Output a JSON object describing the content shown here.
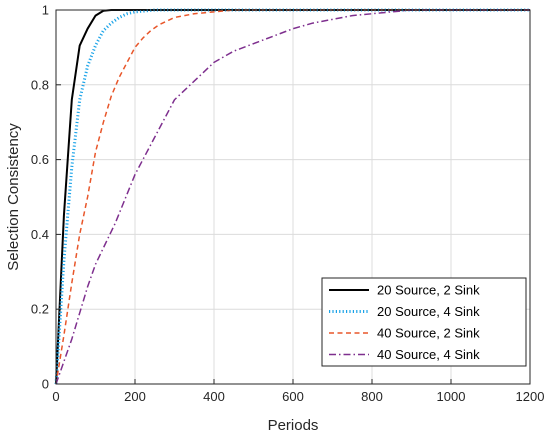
{
  "chart_data": {
    "type": "line",
    "title": "",
    "xlabel": "Periods",
    "ylabel": "Selection Consistency",
    "xlim": [
      0,
      1200
    ],
    "ylim": [
      0,
      1
    ],
    "xticks": [
      0,
      200,
      400,
      600,
      800,
      1000,
      1200
    ],
    "xtick_labels": [
      "0",
      "200",
      "400",
      "600",
      "800",
      "1000",
      "1200"
    ],
    "yticks": [
      0,
      0.2,
      0.4,
      0.6,
      0.8,
      1
    ],
    "ytick_labels": [
      "0",
      "0.2",
      "0.4",
      "0.6",
      "0.8",
      "1"
    ],
    "grid": true,
    "legend_position": "bottom-right",
    "series": [
      {
        "name": "20 Source, 2 Sink",
        "color": "#000000",
        "style": "solid",
        "x": [
          0,
          20,
          40,
          60,
          80,
          100,
          120,
          140,
          200,
          300,
          400,
          600,
          800,
          1000,
          1200
        ],
        "y": [
          0,
          0.45,
          0.76,
          0.905,
          0.95,
          0.985,
          0.998,
          1,
          1,
          1,
          1,
          1,
          1,
          1,
          1
        ]
      },
      {
        "name": "20 Source, 4 Sink",
        "color": "#1aa3e8",
        "style": "dotted",
        "x": [
          0,
          20,
          40,
          60,
          80,
          100,
          120,
          140,
          160,
          180,
          200,
          250,
          300,
          400,
          600,
          800,
          1000,
          1200
        ],
        "y": [
          0,
          0.33,
          0.58,
          0.76,
          0.85,
          0.905,
          0.945,
          0.965,
          0.98,
          0.99,
          0.995,
          1,
          1,
          1,
          1,
          1,
          1,
          1
        ]
      },
      {
        "name": "40 Source, 2 Sink",
        "color": "#e8562a",
        "style": "dashed",
        "x": [
          0,
          20,
          40,
          60,
          80,
          100,
          120,
          140,
          160,
          180,
          200,
          220,
          240,
          260,
          280,
          300,
          350,
          400,
          450,
          500,
          600,
          800,
          1000,
          1200
        ],
        "y": [
          0,
          0.13,
          0.27,
          0.4,
          0.5,
          0.62,
          0.7,
          0.77,
          0.82,
          0.86,
          0.9,
          0.925,
          0.945,
          0.96,
          0.97,
          0.98,
          0.99,
          0.995,
          1,
          1,
          1,
          1,
          1,
          1
        ]
      },
      {
        "name": "40 Source, 4 Sink",
        "color": "#7e2f8e",
        "style": "dashdot",
        "x": [
          0,
          20,
          40,
          60,
          80,
          100,
          150,
          200,
          250,
          300,
          350,
          400,
          450,
          500,
          550,
          600,
          650,
          700,
          750,
          800,
          850,
          900,
          1000,
          1200
        ],
        "y": [
          0,
          0.06,
          0.12,
          0.19,
          0.26,
          0.32,
          0.43,
          0.56,
          0.66,
          0.76,
          0.81,
          0.86,
          0.89,
          0.91,
          0.93,
          0.95,
          0.965,
          0.975,
          0.985,
          0.99,
          0.995,
          1,
          1,
          1
        ]
      }
    ]
  }
}
